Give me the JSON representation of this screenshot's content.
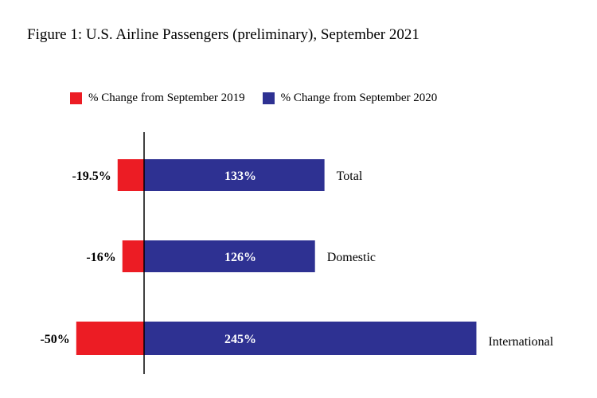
{
  "title": "Figure 1: U.S. Airline Passengers (preliminary), September 2021",
  "colors": {
    "series_2019": "#ec1c24",
    "series_2020": "#2e3192"
  },
  "chart_data": {
    "type": "bar",
    "orientation": "horizontal",
    "categories": [
      "Total",
      "Domestic",
      "International"
    ],
    "series": [
      {
        "name": "% Change from September 2019",
        "values": [
          -19.5,
          -16,
          -50
        ],
        "labels": [
          "-19.5%",
          "-16%",
          "-50%"
        ]
      },
      {
        "name": "% Change from September 2020",
        "values": [
          133,
          126,
          245
        ],
        "labels": [
          "133%",
          "126%",
          "245%"
        ]
      }
    ],
    "legend": "top",
    "grid": false
  }
}
